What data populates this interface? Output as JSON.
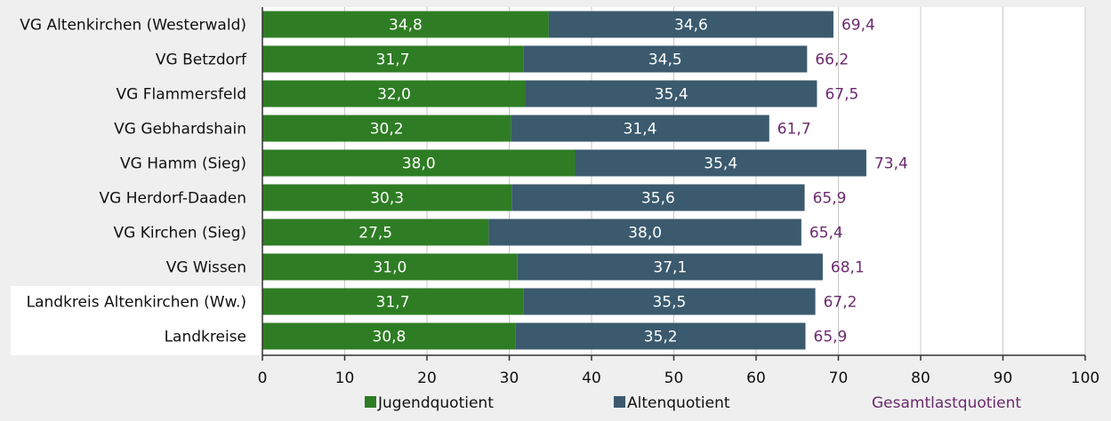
{
  "chart_data": {
    "type": "bar",
    "orientation": "horizontal",
    "stacked": true,
    "categories": [
      "VG Altenkirchen (Westerwald)",
      "VG Betzdorf",
      "VG Flammersfeld",
      "VG Gebhardshain",
      "VG Hamm (Sieg)",
      "VG Herdorf-Daaden",
      "VG Kirchen (Sieg)",
      "VG Wissen",
      "Landkreis Altenkirchen (Ww.)",
      "Landkreise"
    ],
    "highlighted_categories": [
      "Landkreis Altenkirchen (Ww.)",
      "Landkreise"
    ],
    "series": [
      {
        "name": "Jugendquotient",
        "color": "#2e7d24",
        "values": [
          34.8,
          31.7,
          32.0,
          30.2,
          38.0,
          30.3,
          27.5,
          31.0,
          31.7,
          30.8
        ],
        "labels": [
          "34,8",
          "31,7",
          "32,0",
          "30,2",
          "38,0",
          "30,3",
          "27,5",
          "31,0",
          "31,7",
          "30,8"
        ]
      },
      {
        "name": "Altenquotient",
        "color": "#3b5a6e",
        "values": [
          34.6,
          34.5,
          35.4,
          31.4,
          35.4,
          35.6,
          38.0,
          37.1,
          35.5,
          35.2
        ],
        "labels": [
          "34,6",
          "34,5",
          "35,4",
          "31,4",
          "35,4",
          "35,6",
          "38,0",
          "37,1",
          "35,5",
          "35,2"
        ]
      }
    ],
    "totals": {
      "name": "Gesamtlastquotient",
      "color": "#6b2a6e",
      "values": [
        69.4,
        66.2,
        67.5,
        61.7,
        73.4,
        65.9,
        65.4,
        68.1,
        67.2,
        65.9
      ],
      "labels": [
        "69,4",
        "66,2",
        "67,5",
        "61,7",
        "73,4",
        "65,9",
        "65,4",
        "68,1",
        "67,2",
        "65,9"
      ]
    },
    "xlim": [
      0,
      100
    ],
    "xticks": [
      0,
      10,
      20,
      30,
      40,
      50,
      60,
      70,
      80,
      90,
      100
    ],
    "grid": true,
    "legend_position": "bottom",
    "colors": {
      "grid": "#c8c8c8",
      "axis": "#333333",
      "plot_background": "#ffffff",
      "highlight_background": "#ffffff"
    }
  }
}
